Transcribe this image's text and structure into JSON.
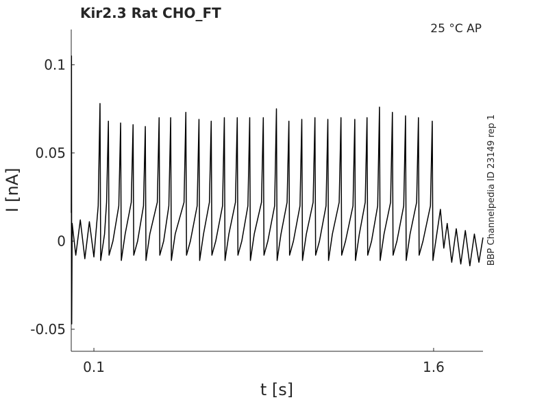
{
  "chart_data": {
    "type": "line",
    "title": "Kir2.3  Rat  CHO_FT",
    "annotation": "25 °C  AP",
    "side_label": "BBP Channelpedia ID 23149 rep 1",
    "x_label": "t [s]",
    "y_label": "I [nA]",
    "xlim": [
      0,
      1.818
    ],
    "ylim": [
      -0.0625,
      0.12
    ],
    "xticks": [
      0.1,
      1.6
    ],
    "yticks": [
      -0.05,
      0,
      0.05,
      0.1
    ],
    "grid": false,
    "x": [
      0,
      0.001,
      0.002,
      0.004,
      0.02,
      0.04,
      0.06,
      0.08,
      0.1,
      0.119,
      0.127,
      0.13,
      0.147,
      0.156,
      0.164,
      0.167,
      0.184,
      0.21,
      0.218,
      0.221,
      0.238,
      0.265,
      0.273,
      0.276,
      0.293,
      0.319,
      0.327,
      0.33,
      0.347,
      0.38,
      0.388,
      0.391,
      0.408,
      0.431,
      0.439,
      0.442,
      0.459,
      0.498,
      0.506,
      0.509,
      0.526,
      0.556,
      0.564,
      0.567,
      0.584,
      0.61,
      0.618,
      0.621,
      0.638,
      0.668,
      0.676,
      0.679,
      0.696,
      0.725,
      0.733,
      0.736,
      0.753,
      0.78,
      0.788,
      0.791,
      0.808,
      0.84,
      0.848,
      0.851,
      0.868,
      0.898,
      0.906,
      0.909,
      0.926,
      0.953,
      0.961,
      0.964,
      0.981,
      1.01,
      1.018,
      1.021,
      1.038,
      1.068,
      1.076,
      1.079,
      1.096,
      1.125,
      1.133,
      1.136,
      1.153,
      1.183,
      1.191,
      1.194,
      1.211,
      1.244,
      1.252,
      1.255,
      1.272,
      1.298,
      1.306,
      1.309,
      1.326,
      1.353,
      1.361,
      1.364,
      1.381,
      1.41,
      1.418,
      1.421,
      1.438,
      1.468,
      1.476,
      1.479,
      1.496,
      1.525,
      1.533,
      1.536,
      1.553,
      1.586,
      1.594,
      1.597,
      1.614,
      1.63,
      1.645,
      1.66,
      1.68,
      1.7,
      1.72,
      1.74,
      1.76,
      1.78,
      1.8,
      1.818
    ],
    "series": [
      {
        "color": "#000000",
        "values": [
          0.016,
          0.105,
          -0.047,
          0.01,
          -0.008,
          0.012,
          -0.01,
          0.011,
          -0.009,
          0.02,
          0.078,
          -0.011,
          0.004,
          0.022,
          0.068,
          -0.008,
          0.0,
          0.02,
          0.067,
          -0.011,
          0.004,
          0.022,
          0.066,
          -0.008,
          0.0,
          0.02,
          0.065,
          -0.011,
          0.004,
          0.022,
          0.07,
          -0.008,
          0.0,
          0.02,
          0.07,
          -0.011,
          0.004,
          0.022,
          0.073,
          -0.008,
          0.0,
          0.02,
          0.069,
          -0.011,
          0.004,
          0.022,
          0.068,
          -0.008,
          0.0,
          0.02,
          0.07,
          -0.011,
          0.004,
          0.022,
          0.07,
          -0.008,
          0.0,
          0.02,
          0.07,
          -0.011,
          0.004,
          0.022,
          0.07,
          -0.008,
          0.0,
          0.02,
          0.075,
          -0.011,
          0.004,
          0.022,
          0.068,
          -0.008,
          0.0,
          0.02,
          0.069,
          -0.011,
          0.004,
          0.022,
          0.07,
          -0.008,
          0.0,
          0.02,
          0.069,
          -0.011,
          0.004,
          0.022,
          0.07,
          -0.008,
          0.0,
          0.02,
          0.069,
          -0.011,
          0.004,
          0.022,
          0.07,
          -0.008,
          0.0,
          0.02,
          0.076,
          -0.011,
          0.004,
          0.022,
          0.073,
          -0.008,
          0.0,
          0.02,
          0.071,
          -0.011,
          0.004,
          0.022,
          0.07,
          -0.008,
          0.0,
          0.02,
          0.068,
          -0.011,
          0.004,
          0.018,
          -0.004,
          0.01,
          -0.012,
          0.007,
          -0.013,
          0.006,
          -0.014,
          0.004,
          -0.012,
          0.002
        ]
      }
    ]
  }
}
